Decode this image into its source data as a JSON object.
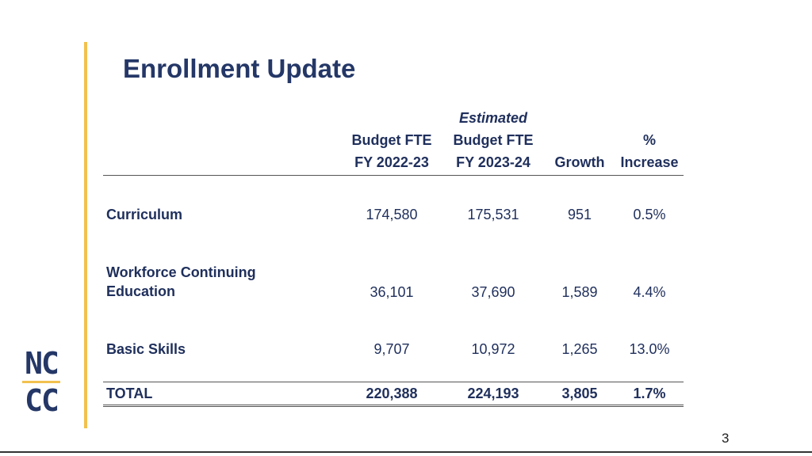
{
  "slide": {
    "title": "Enrollment Update",
    "page_number": "3",
    "logo": {
      "line1": "NC",
      "line2": "CC"
    },
    "colors": {
      "accent": "#f2c14e",
      "text": "#1f2f5c"
    }
  },
  "table": {
    "headers": {
      "budget_fte_line1": "Budget FTE",
      "budget_fte_line2": "FY 2022-23",
      "est_line1": "Estimated",
      "est_line2": "Budget FTE",
      "est_line3": "FY 2023-24",
      "growth": "Growth",
      "pct_line1": "%",
      "pct_line2": "Increase"
    },
    "rows": [
      {
        "label_line1": "Curriculum",
        "label_line2": "",
        "fte_2223": "174,580",
        "fte_2324": "175,531",
        "growth": "951",
        "pct": "0.5%"
      },
      {
        "label_line1": "Workforce Continuing",
        "label_line2": "Education",
        "fte_2223": "36,101",
        "fte_2324": "37,690",
        "growth": "1,589",
        "pct": "4.4%"
      },
      {
        "label_line1": "Basic Skills",
        "label_line2": "",
        "fte_2223": "9,707",
        "fte_2324": "10,972",
        "growth": "1,265",
        "pct": "13.0%"
      }
    ],
    "total": {
      "label": "TOTAL",
      "fte_2223": "220,388",
      "fte_2324": "224,193",
      "growth": "3,805",
      "pct": "1.7%"
    }
  }
}
